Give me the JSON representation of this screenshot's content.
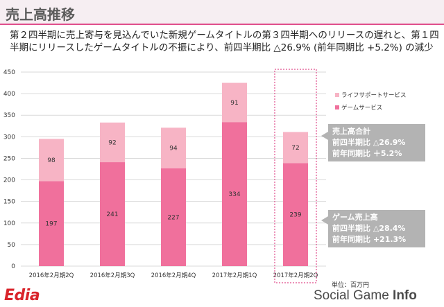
{
  "header": {
    "title": "売上高推移",
    "summary": "第２四半期に売上寄与を見込んでいた新規ゲームタイトルの第３四半期へのリリースの遅れと、第１四半期にリリースしたゲームタイトルの不振により、前四半期比 △26.9% (前年同期比 +5.2%) の減少"
  },
  "chart_data": {
    "type": "bar",
    "stacked": true,
    "categories": [
      "2016年2月期2Q",
      "2016年2月期3Q",
      "2016年2月期4Q",
      "2017年2月期1Q",
      "2017年2月期2Q"
    ],
    "series": [
      {
        "name": "ゲームサービス",
        "values": [
          197,
          241,
          227,
          334,
          239
        ],
        "color": "#f0709c"
      },
      {
        "name": "ライフサポートサービス",
        "values": [
          98,
          92,
          94,
          91,
          72
        ],
        "color": "#f7b4c5"
      }
    ],
    "ylim": [
      0,
      450
    ],
    "yticks": [
      0,
      50,
      100,
      150,
      200,
      250,
      300,
      350,
      400,
      450
    ],
    "legend_placement": "right",
    "highlight_category_index": 4,
    "unit": "単位：百万円",
    "callouts": [
      {
        "lines": [
          "売上高合計",
          "前四半期比 △26.9%",
          "前年同期比 ＋5.2%"
        ]
      },
      {
        "lines": [
          "ゲーム売上高",
          "前四半期比 △28.4%",
          "前年同期比 +21.3%"
        ]
      }
    ]
  },
  "footer": {
    "logo": "Edia",
    "watermark_left": "Social Game ",
    "watermark_right": "Info"
  }
}
